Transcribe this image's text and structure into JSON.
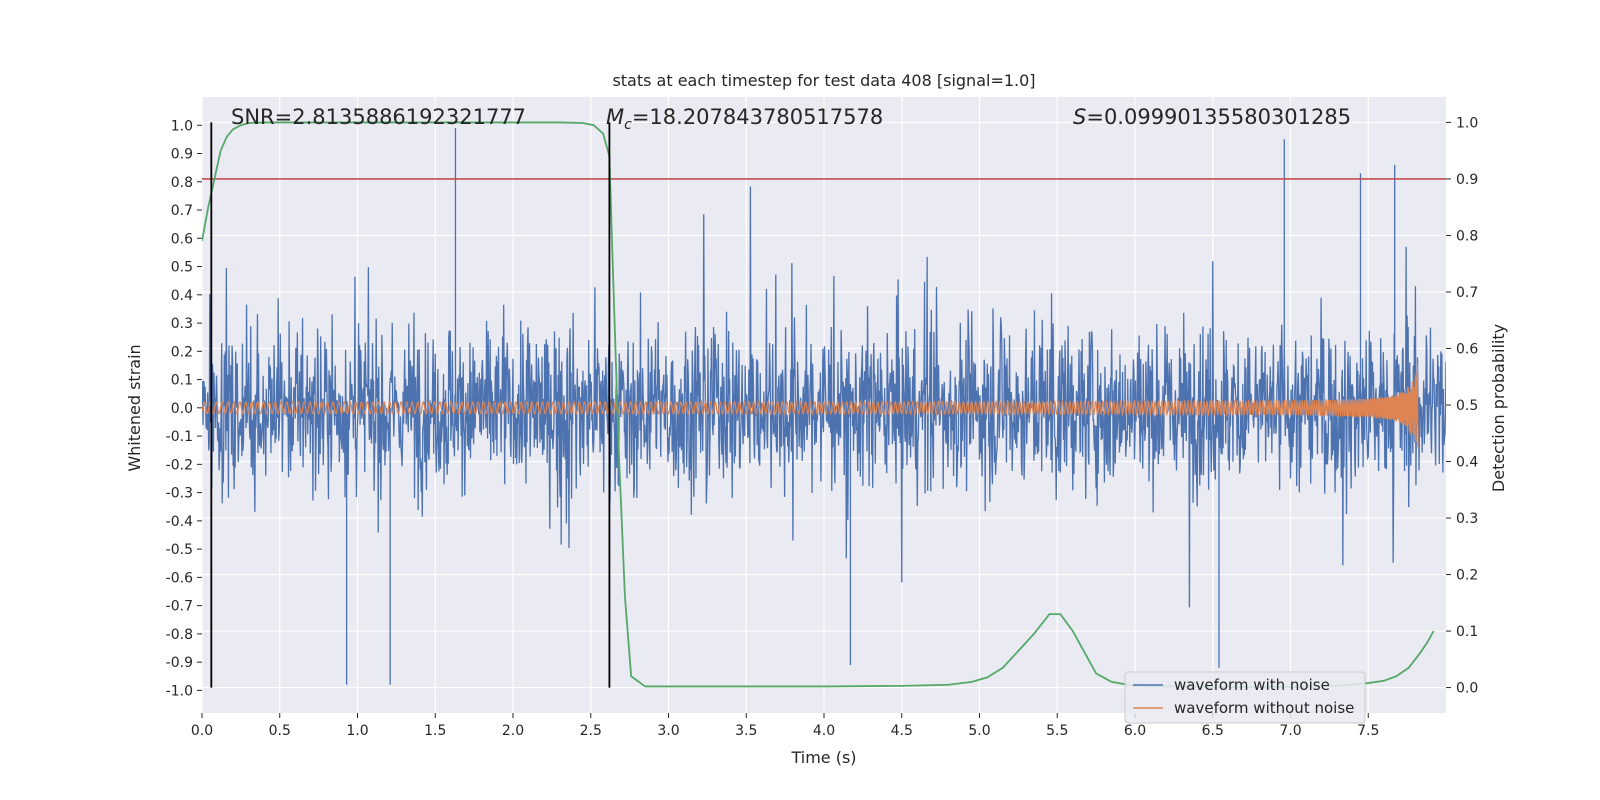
{
  "chart_data": {
    "type": "line",
    "title": "stats at each timestep for test data 408 [signal=1.0]",
    "xlabel": "Time (s)",
    "ylabel": "Whitened strain",
    "y2label": "Detection probability",
    "xlim": [
      0.0,
      8.0
    ],
    "ylim": [
      -1.08,
      1.1
    ],
    "y2lim": [
      -0.045,
      1.045
    ],
    "x_ticks": [
      "0.0",
      "0.5",
      "1.0",
      "1.5",
      "2.0",
      "2.5",
      "3.0",
      "3.5",
      "4.0",
      "4.5",
      "5.0",
      "5.5",
      "6.0",
      "6.5",
      "7.0",
      "7.5"
    ],
    "y_ticks": [
      "1.0",
      "0.9",
      "0.8",
      "0.7",
      "0.6",
      "0.5",
      "0.4",
      "0.3",
      "0.2",
      "0.1",
      "0.0",
      "-0.1",
      "-0.2",
      "-0.3",
      "-0.4",
      "-0.5",
      "-0.6",
      "-0.7",
      "-0.8",
      "-0.9",
      "-1.0"
    ],
    "y2_ticks": [
      "1.0",
      "0.9",
      "0.8",
      "0.7",
      "0.6",
      "0.5",
      "0.4",
      "0.3",
      "0.2",
      "0.1",
      "0.0"
    ],
    "grid": true,
    "legend_position": "lower-right",
    "annotations": {
      "snr": "SNR=2.8135886192321777",
      "mc_symbol": "M",
      "mc_sub": "c",
      "mc_value": "=18.207843780517578",
      "s_symbol": "S",
      "s_value": "=0.09990135580301285"
    },
    "series": [
      {
        "name": "waveform with noise",
        "color": "#4c72b0",
        "kind": "noise",
        "range_x": [
          0.0,
          8.0
        ],
        "envelope": [
          -0.98,
          0.99
        ],
        "spike_peaks": [
          {
            "x": 1.63,
            "y": 0.99
          },
          {
            "x": 6.96,
            "y": 0.95
          },
          {
            "x": 7.67,
            "y": 0.86
          },
          {
            "x": 7.45,
            "y": 0.83
          },
          {
            "x": 0.93,
            "y": -0.98
          },
          {
            "x": 1.21,
            "y": -0.98
          },
          {
            "x": 4.17,
            "y": -0.91
          },
          {
            "x": 6.54,
            "y": -0.92
          }
        ]
      },
      {
        "name": "waveform without noise",
        "color": "#dd8452",
        "kind": "chirp",
        "range_x": [
          0.0,
          7.82
        ],
        "peak_amplitude": 0.19
      },
      {
        "name": "detection probability",
        "color": "#55a868",
        "axis": "right",
        "x": [
          0.0,
          0.04,
          0.08,
          0.12,
          0.16,
          0.2,
          0.25,
          0.3,
          0.4,
          0.6,
          1.0,
          1.5,
          2.0,
          2.3,
          2.45,
          2.52,
          2.58,
          2.62,
          2.64,
          2.68,
          2.72,
          2.76,
          2.85,
          3.0,
          3.5,
          4.0,
          4.5,
          4.8,
          4.95,
          5.05,
          5.15,
          5.25,
          5.35,
          5.45,
          5.52,
          5.6,
          5.68,
          5.75,
          5.85,
          6.0,
          6.5,
          7.0,
          7.3,
          7.5,
          7.6,
          7.68,
          7.76,
          7.83,
          7.88,
          7.92
        ],
        "values": [
          0.79,
          0.85,
          0.9,
          0.95,
          0.975,
          0.988,
          0.995,
          0.999,
          1.0,
          1.0,
          1.0,
          1.0,
          1.0,
          1.0,
          0.999,
          0.995,
          0.98,
          0.94,
          0.76,
          0.42,
          0.16,
          0.02,
          0.002,
          0.002,
          0.002,
          0.002,
          0.003,
          0.005,
          0.01,
          0.018,
          0.035,
          0.065,
          0.095,
          0.13,
          0.13,
          0.1,
          0.06,
          0.025,
          0.01,
          0.003,
          0.001,
          0.001,
          0.003,
          0.008,
          0.012,
          0.02,
          0.035,
          0.06,
          0.08,
          0.1
        ]
      },
      {
        "name": "threshold",
        "color": "#c44e52",
        "axis": "right",
        "value": 0.9
      },
      {
        "name": "event marker",
        "color": "#000000",
        "axis": "right",
        "x": [
          0.06,
          2.62
        ],
        "range": [
          0.0,
          1.0
        ]
      }
    ]
  }
}
